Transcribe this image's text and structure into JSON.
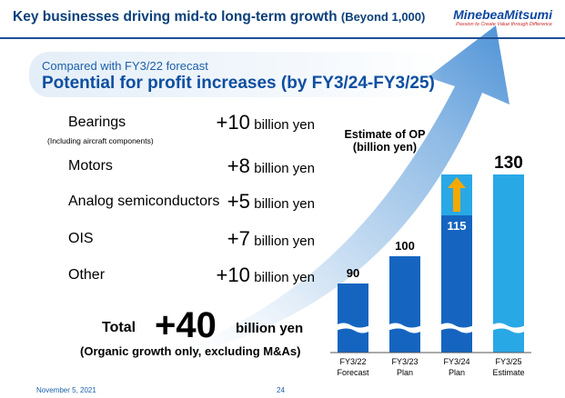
{
  "header": {
    "title_main": "Key businesses driving mid-to long-term growth",
    "title_suffix": "(Beyond 1,000)",
    "logo_name": "MinebeaMitsumi",
    "logo_tagline": "Passion to Create Value through Difference"
  },
  "subtitle": {
    "small": "Compared with FY3/22 forecast",
    "main": "Potential for profit increases (by FY3/24-FY3/25)"
  },
  "segments": [
    {
      "label": "Bearings",
      "note": "(Including aircraft components)",
      "value": "+10",
      "unit": "billion yen"
    },
    {
      "label": "Motors",
      "note": "",
      "value": "+8",
      "unit": "billion yen"
    },
    {
      "label": "Analog semiconductors",
      "note": "",
      "value": "+5",
      "unit": "billion yen"
    },
    {
      "label": "OIS",
      "note": "",
      "value": "+7",
      "unit": "billion yen"
    },
    {
      "label": "Other",
      "note": "",
      "value": "+10",
      "unit": "billion yen"
    }
  ],
  "total": {
    "label": "Total",
    "value": "+40",
    "unit": "billion yen",
    "note": "(Organic growth only, excluding M&As)"
  },
  "footer": {
    "date": "November 5, 2021",
    "page": "24"
  },
  "colors": {
    "title": "#0a3f7a",
    "bar_dark": "#1565c0",
    "bar_light": "#29a8e6",
    "arrow": "#f2a900"
  },
  "chart_data": {
    "type": "bar",
    "title": "Estimate of OP",
    "ylabel": "(billion yen)",
    "categories": [
      [
        "FY3/22",
        "Forecast"
      ],
      [
        "FY3/23",
        "Plan"
      ],
      [
        "FY3/24",
        "Plan"
      ],
      [
        "FY3/25",
        "Estimate"
      ]
    ],
    "values": [
      90,
      100,
      115,
      130
    ],
    "value_labels": [
      "90",
      "100",
      "115",
      "130"
    ],
    "bar_colors": [
      "#1565c0",
      "#1565c0",
      "#1565c0",
      "#29a8e6"
    ],
    "axis_break": true,
    "grid": false,
    "legend": "none"
  }
}
